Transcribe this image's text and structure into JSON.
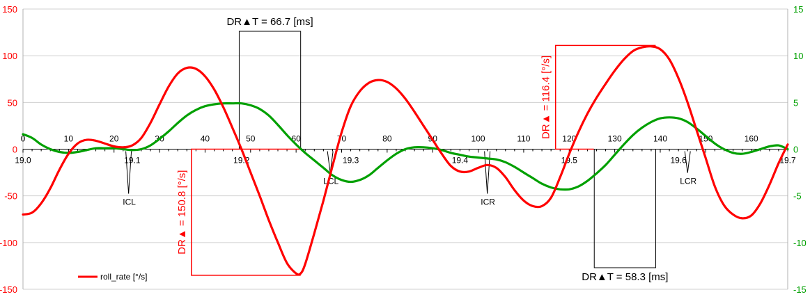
{
  "chart_data": {
    "type": "line",
    "y_left": {
      "ylim": [
        -150,
        150
      ],
      "ticks": [
        150,
        100,
        50,
        0,
        -50,
        -100,
        -150
      ],
      "color": "#ff0000"
    },
    "y_right": {
      "ylim": [
        -15,
        15
      ],
      "ticks": [
        15,
        10,
        5,
        0,
        -5,
        -10,
        -15
      ],
      "color": "#00a000"
    },
    "x_samples": {
      "xlim": [
        0,
        168
      ],
      "ticks": [
        0,
        10,
        20,
        30,
        40,
        50,
        60,
        70,
        80,
        90,
        100,
        110,
        120,
        130,
        140,
        150,
        160
      ]
    },
    "x_time": {
      "labels": [
        "19.0",
        "19.1",
        "19.2",
        "19.3",
        "19.4",
        "19.5",
        "19.6",
        "19.7"
      ],
      "positions": [
        0,
        24,
        48,
        72,
        96,
        120,
        144,
        168
      ]
    },
    "grid": true,
    "legend": {
      "position": "bottom-left",
      "entries": [
        {
          "label": "roll_rate [°/s]",
          "color": "#ff0000"
        }
      ]
    },
    "series": [
      {
        "name": "roll_rate [°/s]",
        "axis": "left",
        "color": "#ff0000",
        "points": [
          [
            0,
            -70
          ],
          [
            2,
            -68
          ],
          [
            4,
            -58
          ],
          [
            6,
            -42
          ],
          [
            8,
            -22
          ],
          [
            10,
            -5
          ],
          [
            12,
            6
          ],
          [
            14,
            10
          ],
          [
            16,
            9
          ],
          [
            18,
            6
          ],
          [
            20,
            3
          ],
          [
            22,
            2
          ],
          [
            24,
            4
          ],
          [
            26,
            12
          ],
          [
            28,
            28
          ],
          [
            30,
            48
          ],
          [
            32,
            67
          ],
          [
            34,
            81
          ],
          [
            36,
            87
          ],
          [
            38,
            86
          ],
          [
            40,
            78
          ],
          [
            42,
            64
          ],
          [
            44,
            45
          ],
          [
            46,
            23
          ],
          [
            48,
            0
          ],
          [
            50,
            -25
          ],
          [
            52,
            -50
          ],
          [
            54,
            -76
          ],
          [
            56,
            -100
          ],
          [
            58,
            -122
          ],
          [
            60,
            -133
          ],
          [
            61,
            -133
          ],
          [
            62,
            -123
          ],
          [
            64,
            -90
          ],
          [
            66,
            -55
          ],
          [
            68,
            -18
          ],
          [
            70,
            18
          ],
          [
            72,
            46
          ],
          [
            74,
            62
          ],
          [
            76,
            71
          ],
          [
            78,
            74
          ],
          [
            80,
            72
          ],
          [
            82,
            65
          ],
          [
            84,
            54
          ],
          [
            86,
            40
          ],
          [
            88,
            25
          ],
          [
            90,
            10
          ],
          [
            92,
            -5
          ],
          [
            94,
            -18
          ],
          [
            96,
            -24
          ],
          [
            98,
            -24
          ],
          [
            100,
            -20
          ],
          [
            102,
            -17
          ],
          [
            104,
            -20
          ],
          [
            106,
            -30
          ],
          [
            108,
            -44
          ],
          [
            110,
            -55
          ],
          [
            112,
            -61
          ],
          [
            114,
            -61
          ],
          [
            116,
            -52
          ],
          [
            118,
            -30
          ],
          [
            120,
            -5
          ],
          [
            122,
            18
          ],
          [
            124,
            38
          ],
          [
            126,
            55
          ],
          [
            128,
            70
          ],
          [
            130,
            84
          ],
          [
            132,
            96
          ],
          [
            134,
            105
          ],
          [
            136,
            109
          ],
          [
            138,
            110
          ],
          [
            140,
            107
          ],
          [
            142,
            96
          ],
          [
            144,
            76
          ],
          [
            146,
            50
          ],
          [
            148,
            20
          ],
          [
            150,
            -10
          ],
          [
            152,
            -40
          ],
          [
            154,
            -60
          ],
          [
            156,
            -70
          ],
          [
            158,
            -74
          ],
          [
            160,
            -71
          ],
          [
            162,
            -58
          ],
          [
            164,
            -38
          ],
          [
            166,
            -15
          ],
          [
            168,
            5
          ]
        ]
      },
      {
        "name": "",
        "axis": "right",
        "color": "#00a000",
        "points": [
          [
            0,
            1.6
          ],
          [
            2,
            1.2
          ],
          [
            4,
            0.5
          ],
          [
            6,
            0
          ],
          [
            8,
            -0.3
          ],
          [
            10,
            -0.4
          ],
          [
            12,
            -0.3
          ],
          [
            14,
            -0.1
          ],
          [
            16,
            0.1
          ],
          [
            18,
            0.1
          ],
          [
            20,
            0.1
          ],
          [
            22,
            0
          ],
          [
            24,
            -0.1
          ],
          [
            26,
            0
          ],
          [
            28,
            0.4
          ],
          [
            30,
            1.1
          ],
          [
            32,
            1.9
          ],
          [
            34,
            2.8
          ],
          [
            36,
            3.6
          ],
          [
            38,
            4.2
          ],
          [
            40,
            4.6
          ],
          [
            42,
            4.8
          ],
          [
            44,
            4.9
          ],
          [
            46,
            4.9
          ],
          [
            48,
            4.9
          ],
          [
            50,
            4.7
          ],
          [
            52,
            4.3
          ],
          [
            54,
            3.6
          ],
          [
            56,
            2.6
          ],
          [
            58,
            1.5
          ],
          [
            60,
            0.5
          ],
          [
            62,
            -0.4
          ],
          [
            64,
            -1.2
          ],
          [
            66,
            -2
          ],
          [
            68,
            -2.8
          ],
          [
            70,
            -3.3
          ],
          [
            72,
            -3.5
          ],
          [
            74,
            -3.3
          ],
          [
            76,
            -2.8
          ],
          [
            78,
            -2
          ],
          [
            80,
            -1.2
          ],
          [
            82,
            -0.5
          ],
          [
            84,
            0
          ],
          [
            86,
            0.2
          ],
          [
            88,
            0.2
          ],
          [
            90,
            0.1
          ],
          [
            92,
            -0.1
          ],
          [
            94,
            -0.4
          ],
          [
            96,
            -0.6
          ],
          [
            98,
            -0.8
          ],
          [
            100,
            -0.9
          ],
          [
            102,
            -1
          ],
          [
            104,
            -1.1
          ],
          [
            106,
            -1.4
          ],
          [
            108,
            -1.9
          ],
          [
            110,
            -2.5
          ],
          [
            112,
            -3.1
          ],
          [
            114,
            -3.7
          ],
          [
            116,
            -4.1
          ],
          [
            118,
            -4.3
          ],
          [
            120,
            -4.3
          ],
          [
            122,
            -4
          ],
          [
            124,
            -3.4
          ],
          [
            126,
            -2.6
          ],
          [
            128,
            -1.7
          ],
          [
            130,
            -0.6
          ],
          [
            132,
            0.5
          ],
          [
            134,
            1.5
          ],
          [
            136,
            2.3
          ],
          [
            138,
            2.9
          ],
          [
            140,
            3.3
          ],
          [
            142,
            3.4
          ],
          [
            144,
            3.3
          ],
          [
            146,
            2.9
          ],
          [
            148,
            2.2
          ],
          [
            150,
            1.4
          ],
          [
            152,
            0.6
          ],
          [
            154,
            0
          ],
          [
            156,
            -0.4
          ],
          [
            158,
            -0.5
          ],
          [
            160,
            -0.3
          ],
          [
            162,
            0
          ],
          [
            164,
            0.3
          ],
          [
            166,
            0.4
          ],
          [
            168,
            0
          ]
        ]
      }
    ],
    "events": [
      {
        "label": "ICL",
        "x": 23.2
      },
      {
        "label": "LCL",
        "x": 67.5
      },
      {
        "label": "ICR",
        "x": 102
      },
      {
        "label": "LCR",
        "x": 146
      }
    ],
    "annotations": [
      {
        "text": "DR▲T = 66.7 [ms]",
        "x1": 47.5,
        "x2": 61,
        "y": 0,
        "color": "#000000",
        "placement": "top"
      },
      {
        "text": "DR▲ = 150.8 [°/s]",
        "x1": 37,
        "x2": 61,
        "y1": 0,
        "y2": -135,
        "color": "#ff0000",
        "placement": "left"
      },
      {
        "text": "DR▲ = 116.4 [°/s]",
        "x1": 117,
        "x2": 139,
        "y1": 0,
        "y2": 111,
        "color": "#ff0000",
        "placement": "left"
      },
      {
        "text": "DR▲T = 58.3 [ms]",
        "x1": 125.5,
        "x2": 139,
        "y": 0,
        "color": "#000000",
        "placement": "bottom"
      }
    ]
  }
}
